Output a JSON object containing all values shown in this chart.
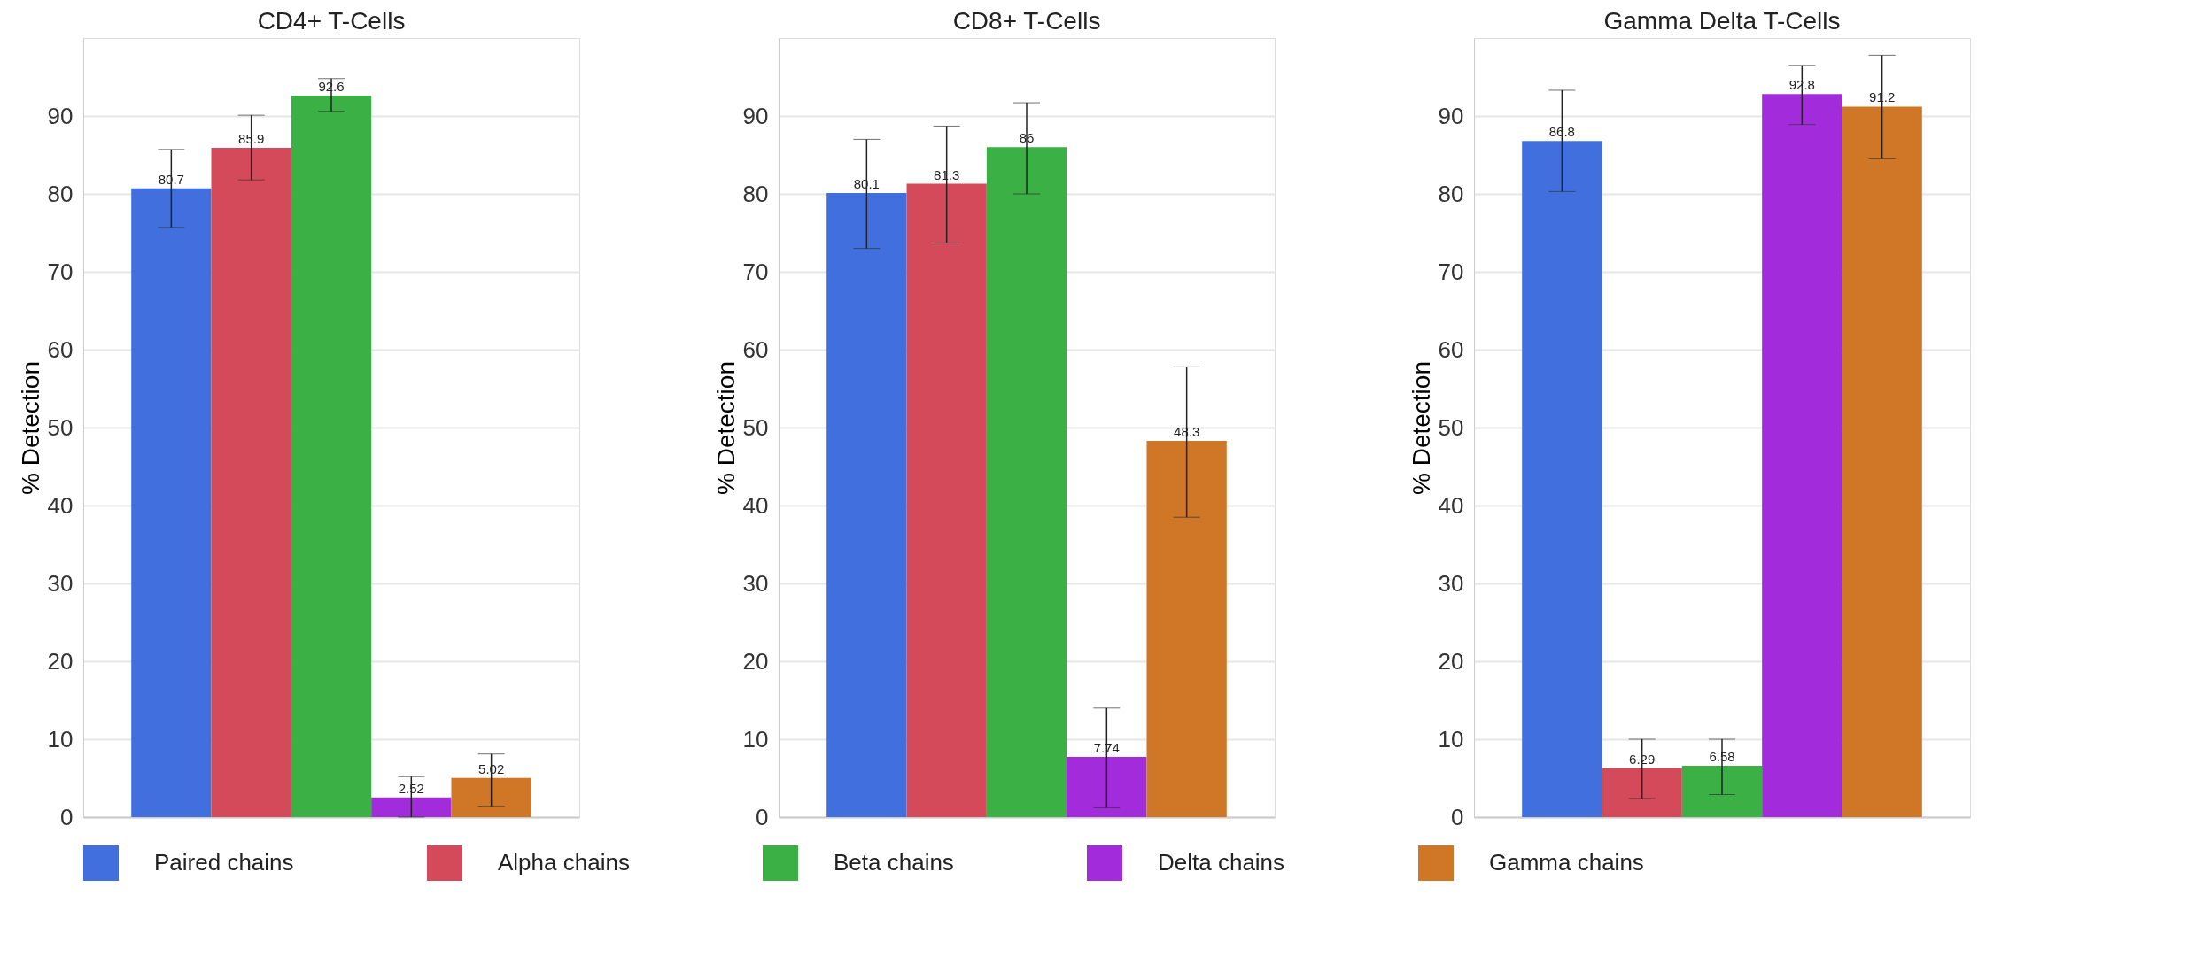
{
  "chart_data": [
    {
      "type": "bar",
      "title": "CD4+ T-Cells",
      "ylabel": "% Detection",
      "categories": [
        null
      ],
      "ylim": [
        0,
        100
      ],
      "yticks": [
        0,
        10,
        20,
        30,
        40,
        50,
        60,
        70,
        80,
        90
      ],
      "grid": "y",
      "legend": "bottom",
      "tick_labels": "y",
      "data_labels": true,
      "series": [
        {
          "name": "Paired chains",
          "color": "#4170de",
          "values": [
            80.7
          ],
          "errors": [
            [
              75.7,
              85.7
            ]
          ]
        },
        {
          "name": "Alpha chains",
          "color": "#d44a5a",
          "values": [
            85.9
          ],
          "errors": [
            [
              81.8,
              90.1
            ]
          ]
        },
        {
          "name": "Beta chains",
          "color": "#3bb045",
          "values": [
            92.6
          ],
          "errors": [
            [
              90.6,
              94.8
            ]
          ]
        },
        {
          "name": "Delta chains",
          "color": "#a22cdb",
          "values": [
            2.52
          ],
          "errors": [
            [
              0,
              5.2
            ]
          ]
        },
        {
          "name": "Gamma chains",
          "color": "#cf7727",
          "values": [
            5.02
          ],
          "errors": [
            [
              1.4,
              8.1
            ]
          ]
        }
      ]
    },
    {
      "type": "bar",
      "title": "CD8+ T-Cells",
      "ylabel": "% Detection",
      "categories": [
        null
      ],
      "ylim": [
        0,
        100
      ],
      "yticks": [
        0,
        10,
        20,
        30,
        40,
        50,
        60,
        70,
        80,
        90
      ],
      "grid": "y",
      "legend": "bottom",
      "tick_labels": "y",
      "data_labels": true,
      "series": [
        {
          "name": "Paired chains",
          "color": "#4170de",
          "values": [
            80.1
          ],
          "errors": [
            [
              73.0,
              87.0
            ]
          ]
        },
        {
          "name": "Alpha chains",
          "color": "#d44a5a",
          "values": [
            81.3
          ],
          "errors": [
            [
              73.7,
              88.7
            ]
          ]
        },
        {
          "name": "Beta chains",
          "color": "#3bb045",
          "values": [
            86
          ],
          "errors": [
            [
              80.0,
              91.7
            ]
          ]
        },
        {
          "name": "Delta chains",
          "color": "#a22cdb",
          "values": [
            7.74
          ],
          "errors": [
            [
              1.2,
              14.0
            ]
          ]
        },
        {
          "name": "Gamma chains",
          "color": "#cf7727",
          "values": [
            48.3
          ],
          "errors": [
            [
              38.5,
              57.8
            ]
          ]
        }
      ]
    },
    {
      "type": "bar",
      "title": "Gamma Delta T-Cells",
      "ylabel": "% Detection",
      "categories": [
        null
      ],
      "ylim": [
        0,
        100
      ],
      "yticks": [
        0,
        10,
        20,
        30,
        40,
        50,
        60,
        70,
        80,
        90
      ],
      "grid": "y",
      "legend": "bottom",
      "tick_labels": "y",
      "data_labels": true,
      "series": [
        {
          "name": "Paired chains",
          "color": "#4170de",
          "values": [
            86.8
          ],
          "errors": [
            [
              80.3,
              93.3
            ]
          ]
        },
        {
          "name": "Alpha chains",
          "color": "#d44a5a",
          "values": [
            6.29
          ],
          "errors": [
            [
              2.4,
              10.0
            ]
          ]
        },
        {
          "name": "Beta chains",
          "color": "#3bb045",
          "values": [
            6.58
          ],
          "errors": [
            [
              2.9,
              10.0
            ]
          ]
        },
        {
          "name": "Delta chains",
          "color": "#a22cdb",
          "values": [
            92.8
          ],
          "errors": [
            [
              88.9,
              96.5
            ]
          ]
        },
        {
          "name": "Gamma chains",
          "color": "#cf7727",
          "values": [
            91.2
          ],
          "errors": [
            [
              84.5,
              97.8
            ]
          ]
        }
      ]
    }
  ]
}
